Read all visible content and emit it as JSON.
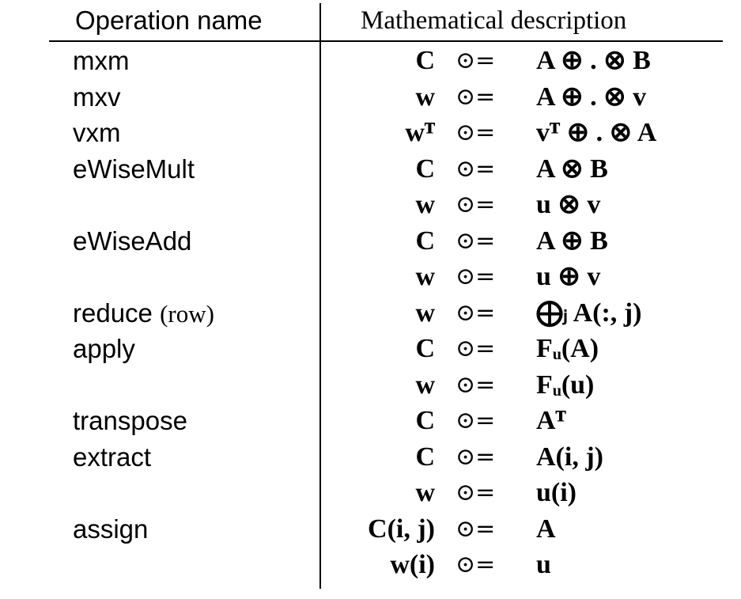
{
  "headers": {
    "operation": "Operation name",
    "math": "Mathematical description"
  },
  "rows": [
    {
      "op": "mxm",
      "note": "",
      "lhs": "C",
      "sym": "⊙=",
      "rhs": "A ⊕ . ⊗ B"
    },
    {
      "op": "mxv",
      "note": "",
      "lhs": "w",
      "sym": "⊙=",
      "rhs": "A ⊕ . ⊗ v"
    },
    {
      "op": "vxm",
      "note": "",
      "lhs": "wᵀ",
      "sym": "⊙=",
      "rhs": "vᵀ ⊕ . ⊗ A"
    },
    {
      "op": "eWiseMult",
      "note": "",
      "lhs": "C",
      "sym": "⊙=",
      "rhs": "A ⊗ B"
    },
    {
      "op": "",
      "note": "",
      "lhs": "w",
      "sym": "⊙=",
      "rhs": "u ⊗ v"
    },
    {
      "op": "eWiseAdd",
      "note": "",
      "lhs": "C",
      "sym": "⊙=",
      "rhs": "A ⊕ B"
    },
    {
      "op": "",
      "note": "",
      "lhs": "w",
      "sym": "⊙=",
      "rhs": "u ⊕ v"
    },
    {
      "op": "reduce",
      "note": "(row)",
      "lhs": "w",
      "sym": "⊙=",
      "rhs": "⨁ⱼ A(:, j)"
    },
    {
      "op": "apply",
      "note": "",
      "lhs": "C",
      "sym": "⊙=",
      "rhs": "Fᵤ(A)"
    },
    {
      "op": "",
      "note": "",
      "lhs": "w",
      "sym": "⊙=",
      "rhs": "Fᵤ(u)"
    },
    {
      "op": "transpose",
      "note": "",
      "lhs": "C",
      "sym": "⊙=",
      "rhs": "Aᵀ"
    },
    {
      "op": "extract",
      "note": "",
      "lhs": "C",
      "sym": "⊙=",
      "rhs": "A(i, j)"
    },
    {
      "op": "",
      "note": "",
      "lhs": "w",
      "sym": "⊙=",
      "rhs": "u(i)"
    },
    {
      "op": "assign",
      "note": "",
      "lhs": "C(i, j)",
      "sym": "⊙=",
      "rhs": "A"
    },
    {
      "op": "",
      "note": "",
      "lhs": "w(i)",
      "sym": "⊙=",
      "rhs": "u"
    }
  ]
}
